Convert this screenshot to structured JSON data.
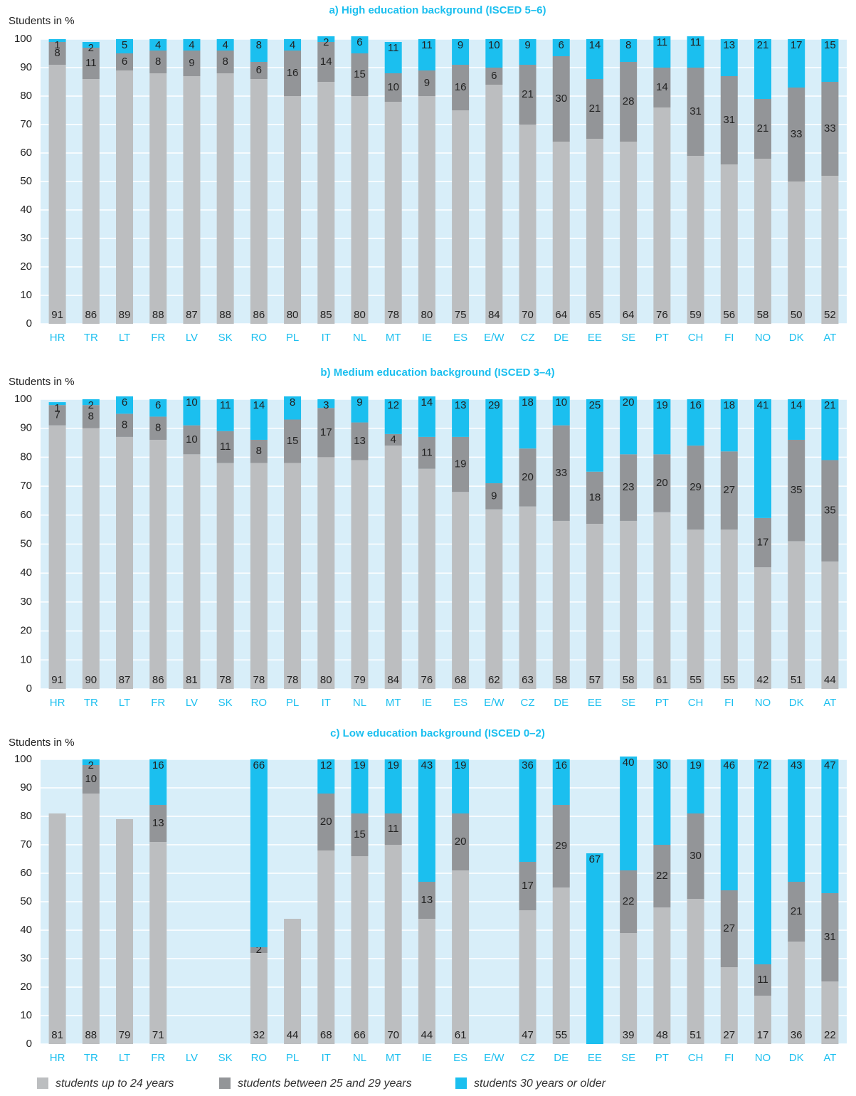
{
  "chart_data": [
    {
      "type": "bar",
      "stacked": true,
      "title": "a) High education background (ISCED 5–6)",
      "y_label": "Students in %",
      "categories": [
        "HR",
        "TR",
        "LT",
        "FR",
        "LV",
        "SK",
        "RO",
        "PL",
        "IT",
        "NL",
        "MT",
        "IE",
        "ES",
        "E/W",
        "CZ",
        "DE",
        "EE",
        "SE",
        "PT",
        "CH",
        "FI",
        "NO",
        "DK",
        "AT"
      ],
      "series": [
        {
          "color": "#bcbec0",
          "values": [
            91,
            86,
            89,
            88,
            87,
            88,
            86,
            80,
            85,
            80,
            78,
            80,
            75,
            84,
            70,
            64,
            65,
            64,
            76,
            59,
            56,
            58,
            50,
            52
          ]
        },
        {
          "color": "#939598",
          "values": [
            8,
            11,
            6,
            8,
            9,
            8,
            6,
            16,
            14,
            15,
            10,
            9,
            16,
            6,
            21,
            30,
            21,
            28,
            14,
            31,
            31,
            21,
            33,
            33
          ]
        },
        {
          "color": "#1bbfef",
          "values": [
            1,
            2,
            5,
            4,
            4,
            4,
            8,
            4,
            2,
            6,
            11,
            11,
            9,
            10,
            9,
            6,
            14,
            8,
            11,
            11,
            13,
            21,
            17,
            15
          ]
        }
      ],
      "ylim": [
        0,
        100
      ],
      "yticks": [
        0,
        10,
        20,
        30,
        40,
        50,
        60,
        70,
        80,
        90,
        100
      ],
      "grid": true
    },
    {
      "type": "bar",
      "stacked": true,
      "title": "b) Medium education background (ISCED 3–4)",
      "y_label": "Students in %",
      "categories": [
        "HR",
        "TR",
        "LT",
        "FR",
        "LV",
        "SK",
        "RO",
        "PL",
        "IT",
        "NL",
        "MT",
        "IE",
        "ES",
        "E/W",
        "CZ",
        "DE",
        "EE",
        "SE",
        "PT",
        "CH",
        "FI",
        "NO",
        "DK",
        "AT"
      ],
      "series": [
        {
          "color": "#bcbec0",
          "values": [
            91,
            90,
            87,
            86,
            81,
            78,
            78,
            78,
            80,
            79,
            84,
            76,
            68,
            62,
            63,
            58,
            57,
            58,
            61,
            55,
            55,
            42,
            51,
            44
          ]
        },
        {
          "color": "#939598",
          "values": [
            7,
            8,
            8,
            8,
            10,
            11,
            8,
            15,
            17,
            13,
            4,
            11,
            19,
            9,
            20,
            33,
            18,
            23,
            20,
            29,
            27,
            17,
            35,
            35
          ]
        },
        {
          "color": "#1bbfef",
          "values": [
            1,
            2,
            6,
            6,
            10,
            11,
            14,
            8,
            3,
            9,
            12,
            14,
            13,
            29,
            18,
            10,
            25,
            20,
            19,
            16,
            18,
            41,
            14,
            21
          ]
        }
      ],
      "ylim": [
        0,
        100
      ],
      "yticks": [
        0,
        10,
        20,
        30,
        40,
        50,
        60,
        70,
        80,
        90,
        100
      ],
      "grid": true
    },
    {
      "type": "bar",
      "stacked": true,
      "title": "c) Low education background (ISCED 0–2)",
      "y_label": "Students in %",
      "categories": [
        "HR",
        "TR",
        "LT",
        "FR",
        "LV",
        "SK",
        "RO",
        "PL",
        "IT",
        "NL",
        "MT",
        "IE",
        "ES",
        "E/W",
        "CZ",
        "DE",
        "EE",
        "SE",
        "PT",
        "CH",
        "FI",
        "NO",
        "DK",
        "AT"
      ],
      "series": [
        {
          "name": "students up to 24 years",
          "color": "#bcbec0",
          "values": [
            81,
            88,
            79,
            71,
            null,
            null,
            32,
            44,
            68,
            66,
            70,
            44,
            61,
            null,
            47,
            55,
            null,
            39,
            48,
            51,
            27,
            17,
            36,
            22
          ]
        },
        {
          "name": "students between 25 and 29 years",
          "color": "#939598",
          "values": [
            null,
            10,
            null,
            13,
            null,
            null,
            2,
            null,
            20,
            15,
            11,
            13,
            20,
            null,
            17,
            29,
            null,
            22,
            22,
            30,
            27,
            11,
            21,
            31
          ]
        },
        {
          "name": "students 30 years or older",
          "color": "#1bbfef",
          "values": [
            null,
            2,
            null,
            16,
            null,
            null,
            66,
            null,
            12,
            19,
            19,
            43,
            19,
            null,
            36,
            16,
            67,
            40,
            30,
            19,
            46,
            72,
            43,
            47
          ]
        }
      ],
      "ylim": [
        0,
        100
      ],
      "yticks": [
        0,
        10,
        20,
        30,
        40,
        50,
        60,
        70,
        80,
        90,
        100
      ],
      "grid": true
    }
  ]
}
